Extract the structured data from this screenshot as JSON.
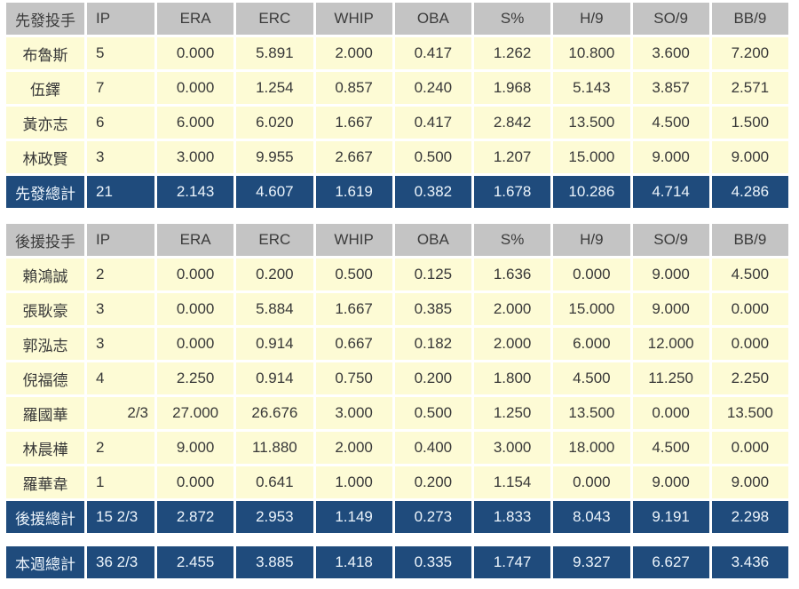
{
  "colors": {
    "header_bg": "#C4C4C4",
    "header_text": "#3B3B3B",
    "row_bg": "#FDFBD5",
    "row_text": "#383838",
    "total_bg": "#1F4B7C",
    "total_text": "#ECF4FB",
    "page_bg": "#FFFFFF"
  },
  "tables": [
    {
      "id": "starters",
      "header": [
        "先發投手",
        "IP",
        "ERA",
        "ERC",
        "WHIP",
        "OBA",
        "S%",
        "H/9",
        "SO/9",
        "BB/9"
      ],
      "rows": [
        [
          "布魯斯",
          "5",
          "0.000",
          "5.891",
          "2.000",
          "0.417",
          "1.262",
          "10.800",
          "3.600",
          "7.200"
        ],
        [
          "伍鐸",
          "7",
          "0.000",
          "1.254",
          "0.857",
          "0.240",
          "1.968",
          "5.143",
          "3.857",
          "2.571"
        ],
        [
          "黃亦志",
          "6",
          "6.000",
          "6.020",
          "1.667",
          "0.417",
          "2.842",
          "13.500",
          "4.500",
          "1.500"
        ],
        [
          "林政賢",
          "3",
          "3.000",
          "9.955",
          "2.667",
          "0.500",
          "1.207",
          "15.000",
          "9.000",
          "9.000"
        ]
      ],
      "total": [
        "先發總計",
        "21",
        "2.143",
        "4.607",
        "1.619",
        "0.382",
        "1.678",
        "10.286",
        "4.714",
        "4.286"
      ]
    },
    {
      "id": "relievers",
      "header": [
        "後援投手",
        "IP",
        "ERA",
        "ERC",
        "WHIP",
        "OBA",
        "S%",
        "H/9",
        "SO/9",
        "BB/9"
      ],
      "rows": [
        [
          "賴鴻誠",
          "2",
          "0.000",
          "0.200",
          "0.500",
          "0.125",
          "1.636",
          "0.000",
          "9.000",
          "4.500"
        ],
        [
          "張耿豪",
          "3",
          "0.000",
          "5.884",
          "1.667",
          "0.385",
          "2.000",
          "15.000",
          "9.000",
          "0.000"
        ],
        [
          "郭泓志",
          "3",
          "0.000",
          "0.914",
          "0.667",
          "0.182",
          "2.000",
          "6.000",
          "12.000",
          "0.000"
        ],
        [
          "倪福德",
          "4",
          "2.250",
          "0.914",
          "0.750",
          "0.200",
          "1.800",
          "4.500",
          "11.250",
          "2.250"
        ],
        [
          "羅國華",
          "2/3",
          "27.000",
          "26.676",
          "3.000",
          "0.500",
          "1.250",
          "13.500",
          "0.000",
          "13.500"
        ],
        [
          "林晨樺",
          "2",
          "9.000",
          "11.880",
          "2.000",
          "0.400",
          "3.000",
          "18.000",
          "4.500",
          "0.000"
        ],
        [
          "羅華韋",
          "1",
          "0.000",
          "0.641",
          "1.000",
          "0.200",
          "1.154",
          "0.000",
          "9.000",
          "9.000"
        ]
      ],
      "total": [
        "後援總計",
        "15 2/3",
        "2.872",
        "2.953",
        "1.149",
        "0.273",
        "1.833",
        "8.043",
        "9.191",
        "2.298"
      ]
    }
  ],
  "grand_total": [
    "本週總計",
    "36 2/3",
    "2.455",
    "3.885",
    "1.418",
    "0.335",
    "1.747",
    "9.327",
    "6.627",
    "3.436"
  ]
}
